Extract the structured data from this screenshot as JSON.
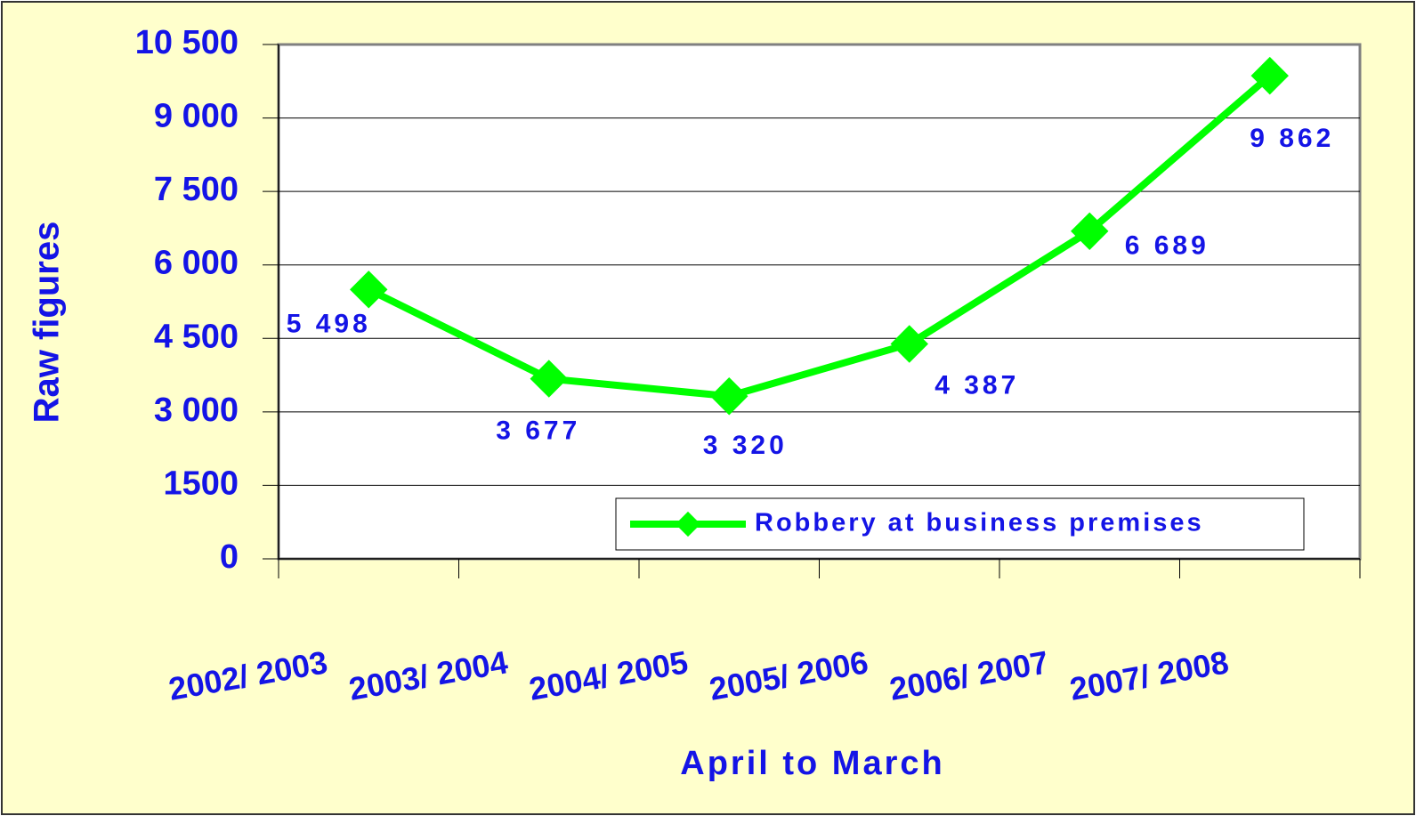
{
  "chart_data": {
    "type": "line",
    "categories": [
      "2002/ 2003",
      "2003/ 2004",
      "2004/ 2005",
      "2005/ 2006",
      "2006/ 2007",
      "2007/ 2008"
    ],
    "series": [
      {
        "name": "Robbery at business premises",
        "color": "#00ff00",
        "values": [
          5498,
          3677,
          3320,
          4387,
          6689,
          9862
        ],
        "value_labels": [
          "5 498",
          "3 677",
          "3 320",
          "4 387",
          "6 689",
          "9 862"
        ]
      }
    ],
    "xlabel": "April to March",
    "ylabel": "Raw figures",
    "ylim": [
      0,
      10500
    ],
    "yticks": [
      0,
      1500,
      {
        "value": 3000,
        "label": "3 000"
      },
      {
        "value": 4500,
        "label": "4 500"
      },
      {
        "value": 6000,
        "label": "6 000"
      },
      {
        "value": 7500,
        "label": "7 500"
      },
      {
        "value": 9000,
        "label": "9 000"
      },
      {
        "value": 10500,
        "label": "10 500"
      }
    ],
    "grid": true,
    "legend": "lower right"
  }
}
